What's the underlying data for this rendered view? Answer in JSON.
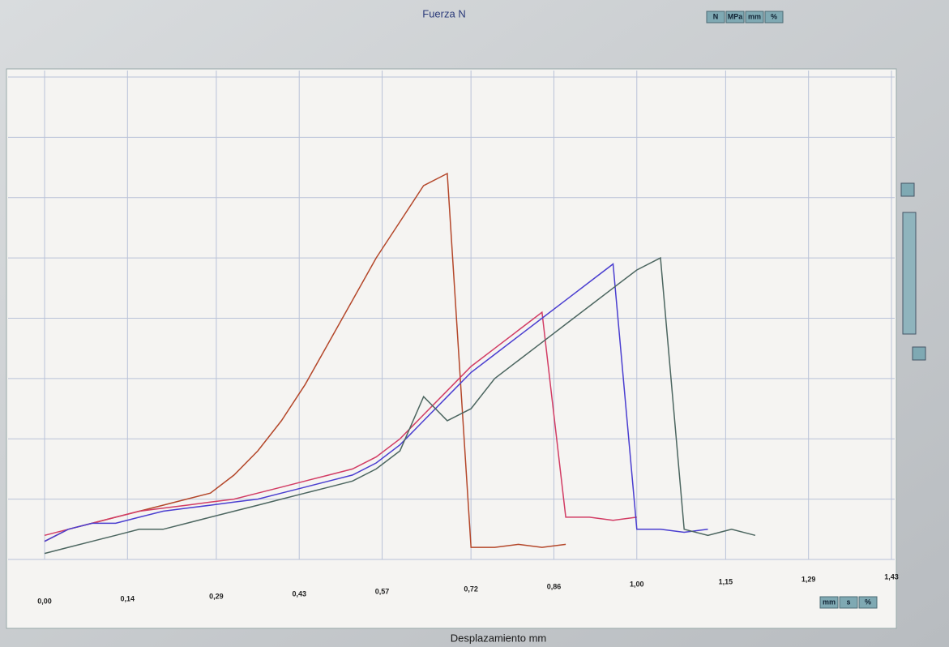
{
  "chart_data": {
    "type": "line",
    "title": "Fuerza  N",
    "xlabel": "Desplazamiento   mm",
    "x": [
      0,
      0.04,
      0.08,
      0.12,
      0.16,
      0.2,
      0.24,
      0.28,
      0.32,
      0.36,
      0.4,
      0.44,
      0.48,
      0.52,
      0.56,
      0.6,
      0.64,
      0.68,
      0.72,
      0.76,
      0.8,
      0.84,
      0.88,
      0.92,
      0.96,
      1.0,
      1.04,
      1.08,
      1.12,
      1.16,
      1.2
    ],
    "series": [
      {
        "color": "#b4472a",
        "values": [
          0.3,
          0.5,
          0.6,
          0.7,
          0.8,
          0.9,
          1.0,
          1.1,
          1.4,
          1.8,
          2.3,
          2.9,
          3.6,
          4.3,
          5.0,
          5.6,
          6.2,
          6.4,
          0.2,
          0.2,
          0.25,
          0.2,
          0.25,
          null,
          null,
          null,
          null,
          null,
          null,
          null,
          null
        ]
      },
      {
        "color": "#d23c64",
        "values": [
          0.4,
          0.5,
          0.6,
          0.7,
          0.8,
          0.85,
          0.9,
          0.95,
          1.0,
          1.1,
          1.2,
          1.3,
          1.4,
          1.5,
          1.7,
          2.0,
          2.4,
          2.8,
          3.2,
          3.5,
          3.8,
          4.1,
          0.7,
          0.7,
          0.65,
          0.7,
          null,
          null,
          null,
          null,
          null
        ]
      },
      {
        "color": "#4a3ed0",
        "values": [
          0.3,
          0.5,
          0.6,
          0.6,
          0.7,
          0.8,
          0.85,
          0.9,
          0.95,
          1.0,
          1.1,
          1.2,
          1.3,
          1.4,
          1.6,
          1.9,
          2.3,
          2.7,
          3.1,
          3.4,
          3.7,
          4.0,
          4.3,
          4.6,
          4.9,
          0.5,
          0.5,
          0.45,
          0.5,
          null,
          null
        ]
      },
      {
        "color": "#4c6660",
        "values": [
          0.1,
          0.2,
          0.3,
          0.4,
          0.5,
          0.5,
          0.6,
          0.7,
          0.8,
          0.9,
          1.0,
          1.1,
          1.2,
          1.3,
          1.5,
          1.8,
          2.7,
          2.3,
          2.5,
          3.0,
          3.3,
          3.6,
          3.9,
          4.2,
          4.5,
          4.8,
          5.0,
          0.5,
          0.4,
          0.5,
          0.4
        ]
      }
    ],
    "xlim": [
      0,
      1.43
    ],
    "xticks": [
      {
        "value": 0,
        "label": "0,00"
      },
      {
        "value": 0.14,
        "label": "0,14"
      },
      {
        "value": 0.29,
        "label": "0,29"
      },
      {
        "value": 0.43,
        "label": "0,43"
      },
      {
        "value": 0.57,
        "label": "0,57"
      },
      {
        "value": 0.72,
        "label": "0,72"
      },
      {
        "value": 0.86,
        "label": "0,86"
      },
      {
        "value": 1.0,
        "label": "1,00"
      },
      {
        "value": 1.15,
        "label": "1,15"
      },
      {
        "value": 1.29,
        "label": "1,29"
      },
      {
        "value": 1.43,
        "label": "1,43"
      }
    ],
    "ylim": [
      0,
      8
    ],
    "yticks": [
      0,
      1,
      2,
      3,
      4,
      5,
      6,
      7,
      8
    ],
    "grid": true
  },
  "toolbar_top": [
    "N",
    "MPa",
    "mm",
    "%"
  ],
  "toolbar_bottom": [
    "mm",
    "s",
    "%"
  ]
}
